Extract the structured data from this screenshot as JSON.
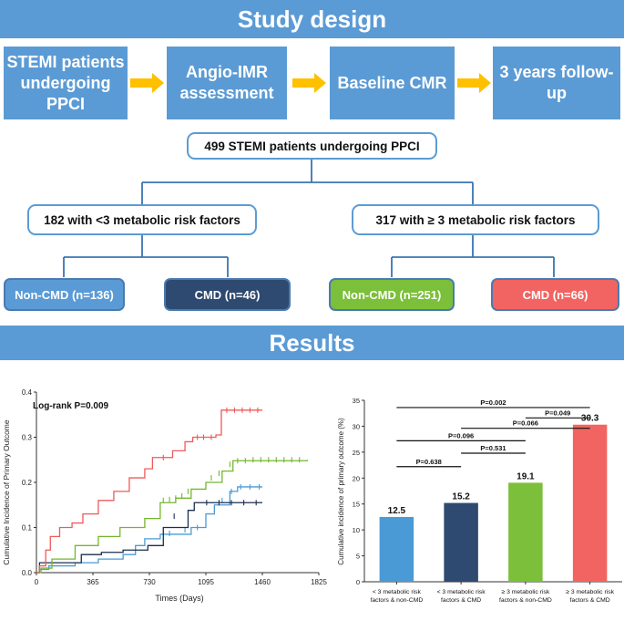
{
  "banners": {
    "design": "Study design",
    "results": "Results"
  },
  "steps": [
    {
      "label": "STEMI patients undergoing PPCI"
    },
    {
      "label": "Angio-IMR assessment"
    },
    {
      "label": "Baseline CMR"
    },
    {
      "label": "3 years follow-up"
    }
  ],
  "tree": {
    "root": "499 STEMI patients undergoing PPCI",
    "left": "182 with <3 metabolic risk factors",
    "right": "317 with ≥ 3 metabolic risk factors",
    "leaves": [
      {
        "label": "Non-CMD (n=136)",
        "color": "#5b9bd5"
      },
      {
        "label": "CMD (n=46)",
        "color": "#2e4a70"
      },
      {
        "label": "Non-CMD (n=251)",
        "color": "#7bbf3a"
      },
      {
        "label": "CMD (n=66)",
        "color": "#f26461"
      }
    ]
  },
  "chart_data": [
    {
      "type": "line",
      "title": "Log-rank P=0.009",
      "xlabel": "Times (Days)",
      "ylabel": "Cumulative Incidence of Primary Outcome",
      "xlim": [
        0,
        1825
      ],
      "ylim": [
        0,
        0.4
      ],
      "xticks": [
        0,
        365,
        730,
        1095,
        1460,
        1825
      ],
      "yticks": [
        0.0,
        0.1,
        0.2,
        0.3,
        0.4
      ],
      "series": [
        {
          "name": "< 3 metabolic risk factors & non-CMD",
          "color": "#4a9ad6",
          "points": [
            [
              0,
              0
            ],
            [
              20,
              0.007
            ],
            [
              80,
              0.015
            ],
            [
              250,
              0.022
            ],
            [
              400,
              0.03
            ],
            [
              560,
              0.04
            ],
            [
              640,
              0.06
            ],
            [
              700,
              0.075
            ],
            [
              800,
              0.085
            ],
            [
              1000,
              0.1
            ],
            [
              1095,
              0.13
            ],
            [
              1150,
              0.15
            ],
            [
              1250,
              0.18
            ],
            [
              1300,
              0.19
            ],
            [
              1460,
              0.19
            ]
          ],
          "censor": [
            [
              860,
              0.087
            ],
            [
              960,
              0.095
            ],
            [
              1040,
              0.1
            ],
            [
              1200,
              0.16
            ],
            [
              1260,
              0.18
            ],
            [
              1320,
              0.19
            ],
            [
              1380,
              0.19
            ],
            [
              1440,
              0.19
            ]
          ]
        },
        {
          "name": "< 3 metabolic risk factors & CMD",
          "color": "#1c2f4e",
          "points": [
            [
              0,
              0
            ],
            [
              20,
              0.022
            ],
            [
              200,
              0.022
            ],
            [
              290,
              0.04
            ],
            [
              420,
              0.045
            ],
            [
              560,
              0.05
            ],
            [
              720,
              0.06
            ],
            [
              820,
              0.1
            ],
            [
              980,
              0.138
            ],
            [
              1020,
              0.155
            ],
            [
              1460,
              0.155
            ]
          ],
          "censor": [
            [
              890,
              0.125
            ],
            [
              1100,
              0.155
            ],
            [
              1180,
              0.155
            ],
            [
              1260,
              0.155
            ],
            [
              1340,
              0.155
            ],
            [
              1420,
              0.155
            ]
          ]
        },
        {
          "name": "≥ 3 metabolic risk factors & non-CMD",
          "color": "#74b62f",
          "points": [
            [
              0,
              0
            ],
            [
              30,
              0.01
            ],
            [
              100,
              0.03
            ],
            [
              250,
              0.06
            ],
            [
              400,
              0.08
            ],
            [
              540,
              0.1
            ],
            [
              700,
              0.12
            ],
            [
              800,
              0.155
            ],
            [
              900,
              0.165
            ],
            [
              1000,
              0.185
            ],
            [
              1095,
              0.2
            ],
            [
              1200,
              0.225
            ],
            [
              1270,
              0.248
            ],
            [
              1750,
              0.25
            ]
          ],
          "censor": [
            [
              820,
              0.16
            ],
            [
              860,
              0.162
            ],
            [
              900,
              0.165
            ],
            [
              940,
              0.17
            ],
            [
              980,
              0.18
            ],
            [
              1130,
              0.21
            ],
            [
              1180,
              0.22
            ],
            [
              1250,
              0.24
            ],
            [
              1300,
              0.248
            ],
            [
              1350,
              0.248
            ],
            [
              1400,
              0.25
            ],
            [
              1450,
              0.25
            ],
            [
              1500,
              0.25
            ],
            [
              1550,
              0.25
            ],
            [
              1600,
              0.25
            ],
            [
              1650,
              0.25
            ],
            [
              1700,
              0.25
            ]
          ]
        },
        {
          "name": "≥ 3 metabolic risk factors & CMD",
          "color": "#ef5a5a",
          "points": [
            [
              0,
              0
            ],
            [
              20,
              0.015
            ],
            [
              60,
              0.05
            ],
            [
              90,
              0.08
            ],
            [
              150,
              0.1
            ],
            [
              230,
              0.11
            ],
            [
              300,
              0.13
            ],
            [
              400,
              0.16
            ],
            [
              500,
              0.18
            ],
            [
              600,
              0.21
            ],
            [
              700,
              0.23
            ],
            [
              750,
              0.255
            ],
            [
              880,
              0.27
            ],
            [
              960,
              0.29
            ],
            [
              1010,
              0.3
            ],
            [
              1160,
              0.305
            ],
            [
              1195,
              0.36
            ],
            [
              1460,
              0.36
            ]
          ],
          "censor": [
            [
              820,
              0.255
            ],
            [
              1040,
              0.3
            ],
            [
              1080,
              0.3
            ],
            [
              1130,
              0.3
            ],
            [
              1230,
              0.36
            ],
            [
              1280,
              0.36
            ],
            [
              1330,
              0.36
            ],
            [
              1380,
              0.36
            ],
            [
              1430,
              0.36
            ]
          ]
        }
      ]
    },
    {
      "type": "bar",
      "ylabel": "Cumulative incidence of primary outcome (%)",
      "ylim": [
        0,
        35
      ],
      "yticks": [
        0,
        5,
        10,
        15,
        20,
        25,
        30,
        35
      ],
      "categories": [
        [
          "< 3 metabolic risk",
          "factors & non-CMD"
        ],
        [
          "< 3 metabolic risk",
          "factors & CMD"
        ],
        [
          "≥ 3 metabolic risk",
          "factors & non-CMD"
        ],
        [
          "≥ 3 metabolic risk",
          "factors & CMD"
        ]
      ],
      "values": [
        12.5,
        15.2,
        19.1,
        30.3
      ],
      "value_labels": [
        "12.5",
        "15.2",
        "19.1",
        "30.3"
      ],
      "colors": [
        "#4a9ad6",
        "#2e4a70",
        "#7bbf3a",
        "#f26461"
      ],
      "comparisons": [
        {
          "from": 0,
          "to": 3,
          "label": "P=0.002"
        },
        {
          "from": 2,
          "to": 3,
          "label": "P=0.049"
        },
        {
          "from": 1,
          "to": 3,
          "label": "P=0.066"
        },
        {
          "from": 0,
          "to": 2,
          "label": "P=0.096"
        },
        {
          "from": 1,
          "to": 2,
          "label": "P=0.531"
        },
        {
          "from": 0,
          "to": 1,
          "label": "P=0.638"
        }
      ]
    }
  ]
}
